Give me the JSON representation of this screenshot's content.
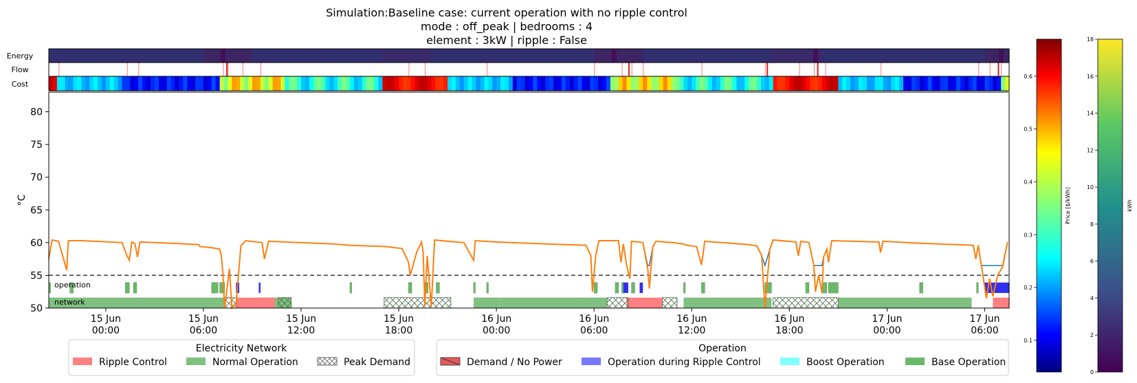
{
  "chart_data": {
    "type": "line",
    "title": [
      "Simulation:Baseline case: current operation with no ripple control",
      "mode : off_peak | bedrooms : 4",
      "element : 3kW | ripple : False"
    ],
    "ylabel": "°C",
    "ylim": [
      50,
      83
    ],
    "y_ticks": [
      50,
      55,
      60,
      65,
      70,
      75,
      80
    ],
    "x_range_hours": [
      -3.5,
      55.5
    ],
    "x_ticks": [
      {
        "t": 0,
        "label": [
          "15 Jun",
          "00:00"
        ]
      },
      {
        "t": 6,
        "label": [
          "15 Jun",
          "06:00"
        ]
      },
      {
        "t": 12,
        "label": [
          "15 Jun",
          "12:00"
        ]
      },
      {
        "t": 18,
        "label": [
          "15 Jun",
          "18:00"
        ]
      },
      {
        "t": 24,
        "label": [
          "16 Jun",
          "00:00"
        ]
      },
      {
        "t": 30,
        "label": [
          "16 Jun",
          "06:00"
        ]
      },
      {
        "t": 36,
        "label": [
          "16 Jun",
          "12:00"
        ]
      },
      {
        "t": 42,
        "label": [
          "16 Jun",
          "18:00"
        ]
      },
      {
        "t": 48,
        "label": [
          "17 Jun",
          "00:00"
        ]
      },
      {
        "t": 54,
        "label": [
          "17 Jun",
          "06:00"
        ]
      }
    ],
    "setpoint_line": 55,
    "strip_labels": {
      "energy": "Energy",
      "flow": "Flow",
      "cost": "Cost"
    },
    "band_labels": {
      "operation": "operation",
      "network": "network"
    },
    "temperature_series": [
      [
        -3.5,
        57.5
      ],
      [
        -3.3,
        60.4
      ],
      [
        -2.9,
        60.2
      ],
      [
        -2.4,
        55.8
      ],
      [
        -2.3,
        60.3
      ],
      [
        -1.5,
        60.3
      ],
      [
        1.0,
        60.0
      ],
      [
        1.3,
        58.0
      ],
      [
        1.45,
        57.3
      ],
      [
        1.6,
        60.1
      ],
      [
        1.8,
        59.8
      ],
      [
        1.95,
        57.8
      ],
      [
        2.1,
        60.1
      ],
      [
        4.0,
        59.9
      ],
      [
        5.7,
        59.7
      ],
      [
        5.8,
        59.4
      ],
      [
        6.6,
        59.2
      ],
      [
        7.0,
        59.0
      ],
      [
        7.1,
        58.0
      ],
      [
        7.2,
        55.0
      ],
      [
        7.3,
        50.0
      ],
      [
        7.6,
        56.0
      ],
      [
        7.75,
        50.0
      ],
      [
        8.0,
        50.5
      ],
      [
        8.3,
        59.5
      ],
      [
        8.6,
        60.3
      ],
      [
        9.6,
        60.0
      ],
      [
        9.75,
        57.5
      ],
      [
        10.0,
        60.2
      ],
      [
        14.0,
        59.8
      ],
      [
        15.0,
        59.6
      ],
      [
        17.3,
        59.4
      ],
      [
        17.5,
        59.3
      ],
      [
        18.2,
        59.1
      ],
      [
        18.6,
        57.0
      ],
      [
        18.7,
        55.0
      ],
      [
        19.1,
        58.5
      ],
      [
        19.4,
        60.1
      ],
      [
        19.5,
        58.5
      ],
      [
        19.6,
        50.3
      ],
      [
        19.75,
        58.0
      ],
      [
        20.0,
        50.2
      ],
      [
        20.2,
        60.4
      ],
      [
        21.0,
        60.2
      ],
      [
        22.0,
        60.0
      ],
      [
        22.6,
        57.3
      ],
      [
        22.7,
        60.3
      ],
      [
        24.0,
        60.1
      ],
      [
        27.0,
        59.8
      ],
      [
        29.5,
        59.6
      ],
      [
        29.8,
        58.0
      ],
      [
        29.9,
        52.5
      ],
      [
        30.1,
        58.0
      ],
      [
        30.3,
        60.3
      ],
      [
        31.5,
        60.3
      ],
      [
        31.65,
        57.0
      ],
      [
        31.8,
        59.8
      ],
      [
        32.0,
        56.5
      ],
      [
        32.2,
        54.5
      ],
      [
        32.3,
        60.2
      ],
      [
        33.0,
        60.0
      ],
      [
        33.3,
        56.0
      ],
      [
        33.4,
        53.0
      ],
      [
        33.6,
        59.3
      ],
      [
        33.8,
        60.2
      ],
      [
        34.8,
        60.0
      ],
      [
        35.5,
        59.8
      ],
      [
        35.7,
        59.6
      ],
      [
        36.3,
        59.4
      ],
      [
        36.6,
        56.6
      ],
      [
        36.8,
        60.2
      ],
      [
        39.5,
        59.7
      ],
      [
        40.0,
        59.5
      ],
      [
        40.3,
        58.0
      ],
      [
        40.5,
        50.0
      ],
      [
        40.8,
        59.0
      ],
      [
        41.0,
        60.4
      ],
      [
        42.4,
        60.1
      ],
      [
        42.55,
        58.0
      ],
      [
        42.7,
        60.2
      ],
      [
        43.2,
        60.0
      ],
      [
        43.5,
        56.5
      ],
      [
        43.6,
        52.5
      ],
      [
        43.8,
        55.0
      ],
      [
        44.0,
        52.3
      ],
      [
        44.1,
        57.8
      ],
      [
        44.3,
        59.0
      ],
      [
        44.4,
        57.0
      ],
      [
        44.6,
        60.3
      ],
      [
        47.5,
        60.1
      ],
      [
        47.6,
        58.5
      ],
      [
        47.75,
        60.2
      ],
      [
        50.0,
        59.9
      ],
      [
        53.3,
        59.6
      ],
      [
        53.45,
        57.5
      ],
      [
        53.6,
        59.6
      ],
      [
        53.8,
        56.5
      ],
      [
        54.1,
        51.5
      ],
      [
        54.3,
        54.5
      ],
      [
        54.5,
        51.8
      ],
      [
        54.8,
        55.0
      ],
      [
        55.1,
        56.3
      ],
      [
        55.4,
        60.1
      ]
    ],
    "operation_base": [
      [
        -3.5,
        -3.4
      ],
      [
        -2.2,
        -2.0
      ],
      [
        1.2,
        1.45
      ],
      [
        1.7,
        1.9
      ],
      [
        6.5,
        6.9
      ],
      [
        7.0,
        7.3
      ],
      [
        15.0,
        15.1
      ],
      [
        18.6,
        18.8
      ],
      [
        19.6,
        19.8
      ],
      [
        20.3,
        20.5
      ],
      [
        22.6,
        22.7
      ],
      [
        23.4,
        23.5
      ],
      [
        30.0,
        30.2
      ],
      [
        31.3,
        31.5
      ],
      [
        31.7,
        31.8
      ],
      [
        32.3,
        32.5
      ],
      [
        35.5,
        35.6
      ],
      [
        36.6,
        36.8
      ],
      [
        40.5,
        40.9
      ],
      [
        43.0,
        43.2
      ],
      [
        44.0,
        44.3
      ],
      [
        44.4,
        45.0
      ],
      [
        50.0,
        50.2
      ],
      [
        53.5,
        53.6
      ]
    ],
    "operation_ripple": [
      [
        8.0,
        8.2
      ],
      [
        9.4,
        9.5
      ],
      [
        31.8,
        32.1
      ],
      [
        32.8,
        33.0
      ],
      [
        54.0,
        55.5
      ]
    ],
    "network_normal": [
      [
        -3.5,
        7.3
      ],
      [
        8.0,
        8.2
      ],
      [
        9.5,
        11.4
      ],
      [
        22.6,
        24.2
      ],
      [
        24.2,
        30.8
      ],
      [
        35.5,
        40.9
      ],
      [
        45.0,
        53.2
      ]
    ],
    "network_peak": [
      [
        7.3,
        8.0
      ],
      [
        10.6,
        11.4
      ],
      [
        17.1,
        21.2
      ],
      [
        30.8,
        32.1
      ],
      [
        34.2,
        35.1
      ],
      [
        41.0,
        45.0
      ]
    ],
    "network_ripple": [
      [
        8.0,
        10.4
      ],
      [
        32.0,
        34.2
      ],
      [
        54.5,
        55.5
      ]
    ],
    "legend_network": {
      "title": "Electricity Network",
      "items": [
        "Ripple Control",
        "Normal Operation",
        "Peak Demand"
      ]
    },
    "legend_operation": {
      "title": "Operation",
      "items": [
        "Demand / No Power",
        "Operation during Ripple Control",
        "Boost Operation",
        "Base Operation"
      ]
    },
    "colorbar_price": {
      "label": "Price [$/kWh]",
      "range": [
        0.04,
        0.67
      ],
      "ticks": [
        0.1,
        0.2,
        0.3,
        0.4,
        0.5,
        0.6
      ]
    },
    "colorbar_energy": {
      "label": "kWh",
      "range": [
        0,
        18
      ],
      "ticks": [
        0,
        2,
        4,
        6,
        8,
        10,
        12,
        14,
        16,
        18
      ]
    },
    "colors": {
      "temperature": "#ff7f0e",
      "temperature_under": "#1f77b4",
      "setpoint": "#333333",
      "ripple": "#ff8080",
      "normal": "#80c080",
      "base": "#6ab86a",
      "ripple_op": "#3030ee",
      "boost": "#80ffff"
    }
  }
}
